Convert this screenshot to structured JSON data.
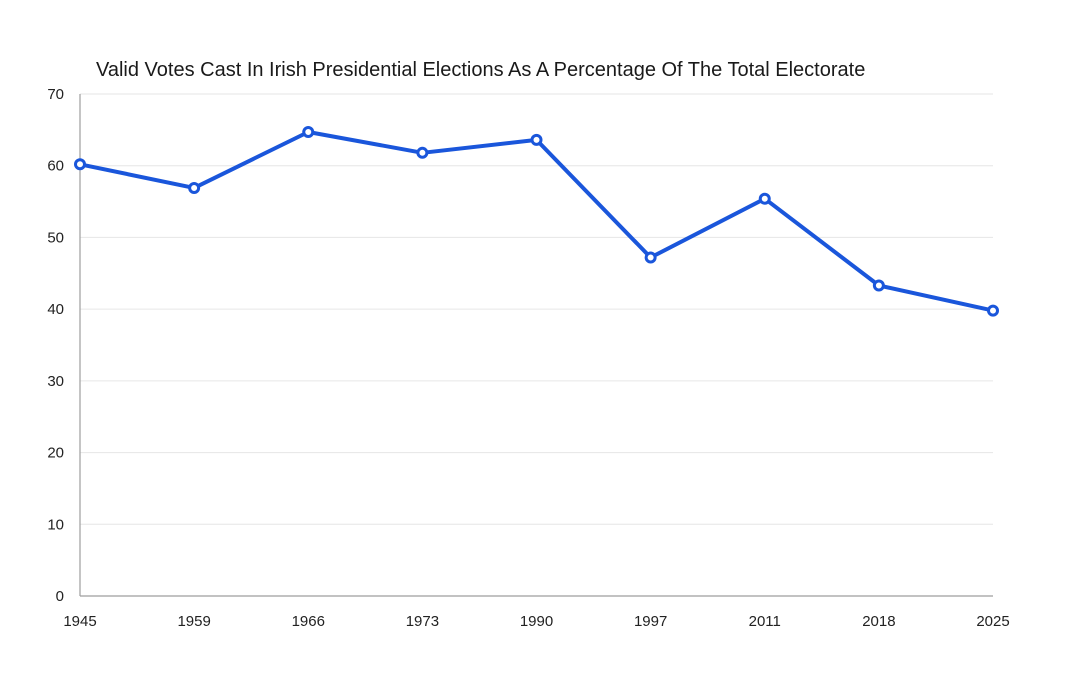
{
  "chart_data": {
    "type": "line",
    "title": "Valid Votes Cast In Irish Presidential Elections As A Percentage Of The Total Electorate",
    "xlabel": "",
    "ylabel": "",
    "categories": [
      "1945",
      "1959",
      "1966",
      "1973",
      "1990",
      "1997",
      "2011",
      "2018",
      "2025"
    ],
    "series": [
      {
        "values": [
          60.2,
          56.9,
          64.7,
          61.8,
          63.6,
          47.2,
          55.4,
          43.3,
          39.8
        ],
        "color": "#1a56db"
      }
    ],
    "ylim": [
      0,
      70
    ],
    "yticks": [
      "0",
      "10",
      "20",
      "30",
      "40",
      "50",
      "60",
      "70"
    ],
    "grid": true,
    "legend": "none"
  }
}
